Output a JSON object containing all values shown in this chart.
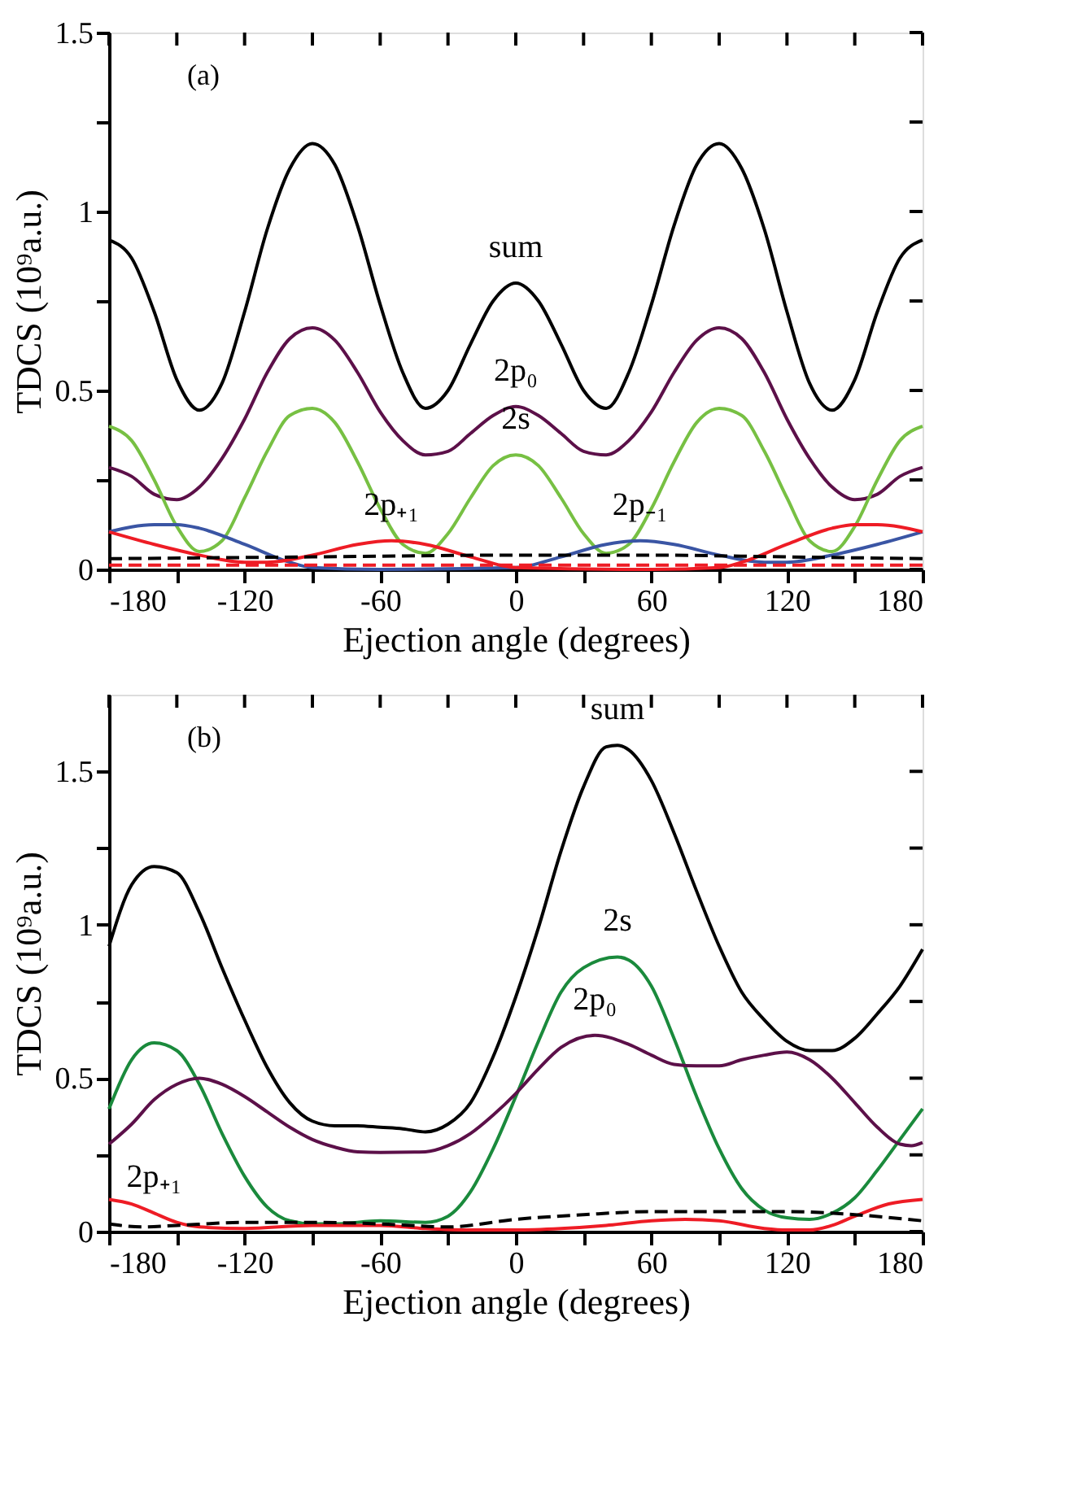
{
  "chart_data": [
    {
      "type": "line",
      "xlabel": "Ejection angle (degrees)",
      "ylabel": "TDCS (10⁹a.u.)",
      "xlim": [
        -180,
        180
      ],
      "ylim": [
        0,
        1.5
      ],
      "xticks": [
        -180,
        {
          "value": -150,
          "label": null
        },
        -120,
        {
          "value": -90,
          "label": null
        },
        -60,
        {
          "value": -30,
          "label": null
        },
        0,
        {
          "value": 30,
          "label": null
        },
        60,
        {
          "value": 90,
          "label": null
        },
        120,
        {
          "value": 150,
          "label": null
        },
        180
      ],
      "yticks": [
        0,
        {
          "value": 0.25,
          "label": null
        },
        0.5,
        {
          "value": 0.75,
          "label": null
        },
        1,
        {
          "value": 1.25,
          "label": null
        },
        1.5
      ],
      "grid": false,
      "marker": "none",
      "annotations": [
        "(a)",
        {
          "text": "sum",
          "x": 0,
          "y": 0.8
        },
        {
          "text": "2p₀",
          "x": 0,
          "y": 0.455
        },
        {
          "text": "2s",
          "x": 0,
          "y": 0.32
        },
        {
          "text": "2p₊₁",
          "x": -55,
          "y": 0.08
        },
        {
          "text": "2p₋₁",
          "x": 55,
          "y": 0.08
        }
      ],
      "series": [
        {
          "color": "#000000",
          "line_style": "solid",
          "x": [
            -180,
            -170,
            -160,
            -150,
            -140,
            -130,
            -120,
            -110,
            -100,
            -90,
            -80,
            -70,
            -60,
            -50,
            -40,
            -30,
            -20,
            -10,
            0,
            10,
            20,
            30,
            40,
            50,
            60,
            70,
            80,
            90,
            100,
            110,
            120,
            130,
            140,
            150,
            160,
            170,
            180
          ],
          "values": [
            0.92,
            0.87,
            0.72,
            0.53,
            0.445,
            0.52,
            0.72,
            0.95,
            1.12,
            1.19,
            1.13,
            0.96,
            0.74,
            0.55,
            0.45,
            0.5,
            0.63,
            0.75,
            0.8,
            0.75,
            0.63,
            0.5,
            0.45,
            0.55,
            0.74,
            0.96,
            1.13,
            1.19,
            1.12,
            0.95,
            0.72,
            0.52,
            0.445,
            0.53,
            0.72,
            0.87,
            0.92
          ]
        },
        {
          "color": "#5c1049",
          "line_style": "solid",
          "x": [
            -180,
            -170,
            -160,
            -150,
            -140,
            -130,
            -120,
            -110,
            -100,
            -90,
            -80,
            -70,
            -60,
            -50,
            -40,
            -30,
            -20,
            -10,
            0,
            10,
            20,
            30,
            40,
            50,
            60,
            70,
            80,
            90,
            100,
            110,
            120,
            130,
            140,
            150,
            160,
            170,
            180
          ],
          "values": [
            0.285,
            0.26,
            0.21,
            0.195,
            0.23,
            0.31,
            0.42,
            0.55,
            0.645,
            0.675,
            0.64,
            0.55,
            0.44,
            0.36,
            0.32,
            0.33,
            0.38,
            0.43,
            0.455,
            0.43,
            0.38,
            0.33,
            0.32,
            0.36,
            0.44,
            0.55,
            0.64,
            0.675,
            0.645,
            0.55,
            0.42,
            0.31,
            0.23,
            0.195,
            0.21,
            0.26,
            0.285
          ]
        },
        {
          "color": "#77c043",
          "line_style": "solid",
          "x": [
            -180,
            -170,
            -160,
            -150,
            -140,
            -130,
            -120,
            -110,
            -100,
            -90,
            -80,
            -70,
            -60,
            -50,
            -40,
            -30,
            -20,
            -10,
            0,
            10,
            20,
            30,
            40,
            50,
            60,
            70,
            80,
            90,
            100,
            110,
            120,
            130,
            140,
            150,
            160,
            170,
            180
          ],
          "values": [
            0.4,
            0.36,
            0.25,
            0.12,
            0.05,
            0.08,
            0.2,
            0.33,
            0.43,
            0.45,
            0.41,
            0.3,
            0.17,
            0.07,
            0.045,
            0.1,
            0.2,
            0.29,
            0.32,
            0.29,
            0.2,
            0.1,
            0.045,
            0.07,
            0.17,
            0.3,
            0.41,
            0.45,
            0.43,
            0.33,
            0.2,
            0.08,
            0.05,
            0.12,
            0.25,
            0.36,
            0.4
          ]
        },
        {
          "color": "#3a55a4",
          "line_style": "solid",
          "x": [
            -180,
            -160,
            -150,
            -140,
            -120,
            -100,
            -90,
            -60,
            0,
            20,
            40,
            55,
            70,
            90,
            110,
            120,
            140,
            160,
            180
          ],
          "values": [
            0.105,
            0.125,
            0.125,
            0.115,
            0.07,
            0.02,
            0.005,
            0,
            0.005,
            0.035,
            0.07,
            0.08,
            0.07,
            0.04,
            0.02,
            0.02,
            0.04,
            0.07,
            0.105
          ]
        },
        {
          "color": "#ee1c25",
          "line_style": "solid",
          "x": [
            -180,
            -160,
            -140,
            -120,
            -110,
            -90,
            -70,
            -55,
            -40,
            -20,
            0,
            60,
            90,
            100,
            120,
            140,
            150,
            160,
            180
          ],
          "values": [
            0.105,
            0.07,
            0.04,
            0.02,
            0.02,
            0.04,
            0.07,
            0.08,
            0.07,
            0.035,
            0.005,
            0,
            0.005,
            0.02,
            0.07,
            0.115,
            0.125,
            0.125,
            0.105
          ]
        },
        {
          "color": "#000000",
          "line_style": "dashed",
          "x": [
            -180,
            -90,
            0,
            60,
            120,
            180
          ],
          "values": [
            0.03,
            0.035,
            0.04,
            0.04,
            0.035,
            0.03
          ]
        },
        {
          "color": "#ee1c25",
          "line_style": "dashed",
          "x": [
            -180,
            0,
            180
          ],
          "values": [
            0.012,
            0.012,
            0.012
          ]
        }
      ]
    },
    {
      "type": "line",
      "xlabel": "Ejection angle (degrees)",
      "ylabel": "TDCS (10⁹a.u.)",
      "xlim": [
        -180,
        180
      ],
      "ylim": [
        0,
        1.75
      ],
      "xticks": [
        -180,
        {
          "value": -150,
          "label": null
        },
        -120,
        {
          "value": -90,
          "label": null
        },
        -60,
        {
          "value": -30,
          "label": null
        },
        0,
        {
          "value": 30,
          "label": null
        },
        60,
        {
          "value": 90,
          "label": null
        },
        120,
        {
          "value": 150,
          "label": null
        },
        180
      ],
      "yticks": [
        0,
        {
          "value": 0.25,
          "label": null
        },
        0.5,
        {
          "value": 0.75,
          "label": null
        },
        1,
        {
          "value": 1.25,
          "label": null
        },
        1.5
      ],
      "grid": false,
      "marker": "none",
      "annotations": [
        "(b)",
        {
          "text": "sum",
          "x": 45,
          "y": 1.585
        },
        {
          "text": "2s",
          "x": 45,
          "y": 0.895
        },
        {
          "text": "2p₀",
          "x": 35,
          "y": 0.64
        },
        {
          "text": "2p₊₁",
          "x": -160,
          "y": 0.06
        }
      ],
      "series": [
        {
          "color": "#000000",
          "line_style": "solid",
          "x": [
            -180,
            -170,
            -160,
            -150,
            -140,
            -130,
            -120,
            -110,
            -100,
            -90,
            -80,
            -70,
            -60,
            -50,
            -40,
            -30,
            -20,
            -10,
            0,
            10,
            20,
            30,
            40,
            45,
            50,
            60,
            70,
            80,
            90,
            100,
            110,
            120,
            130,
            140,
            150,
            160,
            170,
            180
          ],
          "values": [
            0.93,
            1.13,
            1.19,
            1.17,
            1.04,
            0.86,
            0.69,
            0.535,
            0.42,
            0.36,
            0.345,
            0.345,
            0.34,
            0.335,
            0.325,
            0.35,
            0.42,
            0.57,
            0.765,
            0.99,
            1.24,
            1.45,
            1.58,
            1.585,
            1.57,
            1.47,
            1.3,
            1.11,
            0.93,
            0.78,
            0.69,
            0.62,
            0.59,
            0.59,
            0.63,
            0.71,
            0.8,
            0.92
          ]
        },
        {
          "color": "#1a8a3c",
          "line_style": "solid",
          "x": [
            -180,
            -170,
            -160,
            -150,
            -140,
            -130,
            -120,
            -110,
            -100,
            -90,
            -80,
            -60,
            -40,
            -30,
            -20,
            -10,
            0,
            10,
            20,
            30,
            45,
            50,
            60,
            70,
            80,
            90,
            100,
            110,
            120,
            130,
            140,
            150,
            160,
            170,
            180
          ],
          "values": [
            0.4,
            0.56,
            0.615,
            0.59,
            0.48,
            0.32,
            0.18,
            0.08,
            0.035,
            0.025,
            0.025,
            0.035,
            0.03,
            0.05,
            0.13,
            0.27,
            0.44,
            0.62,
            0.78,
            0.86,
            0.895,
            0.885,
            0.8,
            0.63,
            0.44,
            0.27,
            0.14,
            0.07,
            0.045,
            0.04,
            0.06,
            0.11,
            0.2,
            0.3,
            0.4
          ]
        },
        {
          "color": "#5c1049",
          "line_style": "solid",
          "x": [
            -180,
            -170,
            -160,
            -150,
            -140,
            -130,
            -120,
            -110,
            -100,
            -90,
            -80,
            -70,
            -60,
            -40,
            -30,
            -20,
            -10,
            0,
            10,
            20,
            35,
            50,
            60,
            70,
            80,
            90,
            100,
            110,
            120,
            130,
            140,
            150,
            160,
            170,
            175,
            180
          ],
          "values": [
            0.285,
            0.35,
            0.43,
            0.48,
            0.5,
            0.48,
            0.44,
            0.39,
            0.34,
            0.3,
            0.275,
            0.26,
            0.258,
            0.26,
            0.28,
            0.32,
            0.38,
            0.45,
            0.53,
            0.6,
            0.64,
            0.61,
            0.575,
            0.545,
            0.54,
            0.54,
            0.56,
            0.575,
            0.585,
            0.56,
            0.5,
            0.42,
            0.34,
            0.285,
            0.28,
            0.29
          ]
        },
        {
          "color": "#ee1c25",
          "line_style": "solid",
          "x": [
            -180,
            -170,
            -160,
            -150,
            -140,
            -120,
            -90,
            -60,
            -40,
            -20,
            0,
            20,
            40,
            60,
            75,
            90,
            110,
            120,
            130,
            140,
            150,
            165,
            180
          ],
          "values": [
            0.105,
            0.09,
            0.06,
            0.03,
            0.015,
            0.01,
            0.02,
            0.02,
            0.01,
            0.005,
            0.005,
            0.01,
            0.02,
            0.035,
            0.04,
            0.035,
            0.01,
            0.005,
            0.005,
            0.02,
            0.05,
            0.09,
            0.105
          ]
        },
        {
          "color": "#000000",
          "line_style": "dashed",
          "x": [
            -180,
            -165,
            -150,
            -120,
            -90,
            -60,
            -30,
            0,
            30,
            60,
            120,
            150,
            180
          ],
          "values": [
            0.025,
            0.015,
            0.02,
            0.03,
            0.03,
            0.025,
            0.015,
            0.04,
            0.055,
            0.065,
            0.065,
            0.055,
            0.035
          ]
        }
      ]
    }
  ]
}
